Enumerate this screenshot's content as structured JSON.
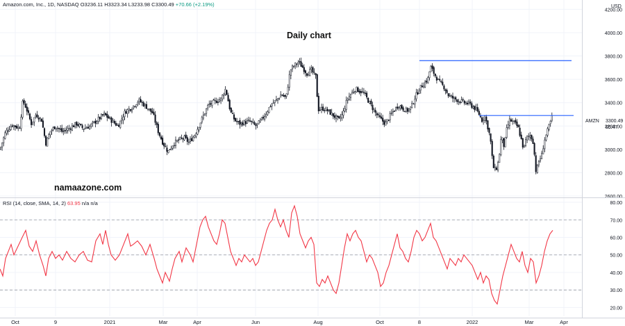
{
  "header": {
    "symbol": "Amazon.com, Inc., 1D, NASDAQ",
    "ohlc": "O3236.11  H3323.34  L3233.98  C3300.49",
    "change": "+70.66 (+2.19%)"
  },
  "title": "Daily chart",
  "watermark": "namaazone.com",
  "price_axis": {
    "unit": "USD",
    "ticker": "AMZN",
    "last_price": "3300.49",
    "countdown": "05:47"
  },
  "rsi_header": {
    "label": "RSI (14, close, SMA, 14, 2)",
    "value": "63.95",
    "extra": "n/a  n/a"
  },
  "colors": {
    "up": "#089981",
    "rsi": "#f23645",
    "levels": "#2962ff",
    "candles": "#131722"
  },
  "chart_data": [
    {
      "type": "candlestick",
      "series_name": "Amazon.com, Inc.",
      "ylim": [
        2600,
        4250
      ],
      "y_ticks": [
        2600,
        2800,
        3000,
        3200,
        3400,
        3600,
        3800,
        4000,
        4200
      ],
      "x_ticks": [
        "Oct",
        "9",
        "2021",
        "Mar",
        "Apr",
        "Jun",
        "Aug",
        "Oct",
        "8",
        "2022",
        "Mar",
        "Apr"
      ],
      "close_path": [
        [
          0,
          3000
        ],
        [
          8,
          3150
        ],
        [
          18,
          3210
        ],
        [
          28,
          3180
        ],
        [
          33,
          3420
        ],
        [
          38,
          3350
        ],
        [
          45,
          3220
        ],
        [
          52,
          3300
        ],
        [
          60,
          3250
        ],
        [
          66,
          3050
        ],
        [
          72,
          3150
        ],
        [
          80,
          3200
        ],
        [
          90,
          3150
        ],
        [
          100,
          3180
        ],
        [
          110,
          3220
        ],
        [
          120,
          3180
        ],
        [
          130,
          3200
        ],
        [
          140,
          3250
        ],
        [
          150,
          3300
        ],
        [
          160,
          3250
        ],
        [
          170,
          3200
        ],
        [
          180,
          3320
        ],
        [
          190,
          3360
        ],
        [
          200,
          3420
        ],
        [
          210,
          3370
        ],
        [
          220,
          3310
        ],
        [
          228,
          3150
        ],
        [
          235,
          3050
        ],
        [
          242,
          2980
        ],
        [
          250,
          3050
        ],
        [
          258,
          3080
        ],
        [
          265,
          3100
        ],
        [
          272,
          3060
        ],
        [
          280,
          3120
        ],
        [
          290,
          3250
        ],
        [
          300,
          3380
        ],
        [
          310,
          3410
        ],
        [
          318,
          3430
        ],
        [
          325,
          3520
        ],
        [
          332,
          3320
        ],
        [
          338,
          3250
        ],
        [
          345,
          3220
        ],
        [
          352,
          3230
        ],
        [
          360,
          3240
        ],
        [
          368,
          3200
        ],
        [
          375,
          3240
        ],
        [
          382,
          3300
        ],
        [
          390,
          3380
        ],
        [
          398,
          3420
        ],
        [
          405,
          3470
        ],
        [
          412,
          3440
        ],
        [
          418,
          3680
        ],
        [
          424,
          3720
        ],
        [
          430,
          3750
        ],
        [
          436,
          3700
        ],
        [
          442,
          3650
        ],
        [
          448,
          3680
        ],
        [
          455,
          3620
        ],
        [
          458,
          3340
        ],
        [
          465,
          3350
        ],
        [
          472,
          3330
        ],
        [
          480,
          3290
        ],
        [
          488,
          3250
        ],
        [
          494,
          3310
        ],
        [
          500,
          3430
        ],
        [
          506,
          3480
        ],
        [
          512,
          3520
        ],
        [
          518,
          3500
        ],
        [
          524,
          3480
        ],
        [
          530,
          3420
        ],
        [
          536,
          3360
        ],
        [
          542,
          3300
        ],
        [
          548,
          3260
        ],
        [
          555,
          3220
        ],
        [
          562,
          3290
        ],
        [
          568,
          3340
        ],
        [
          574,
          3380
        ],
        [
          580,
          3350
        ],
        [
          586,
          3330
        ],
        [
          592,
          3360
        ],
        [
          598,
          3450
        ],
        [
          604,
          3520
        ],
        [
          610,
          3560
        ],
        [
          616,
          3600
        ],
        [
          620,
          3710
        ],
        [
          626,
          3640
        ],
        [
          632,
          3580
        ],
        [
          640,
          3530
        ],
        [
          646,
          3460
        ],
        [
          652,
          3440
        ],
        [
          660,
          3420
        ],
        [
          668,
          3400
        ],
        [
          676,
          3390
        ],
        [
          684,
          3350
        ],
        [
          690,
          3300
        ],
        [
          694,
          3250
        ],
        [
          698,
          3290
        ],
        [
          702,
          3200
        ],
        [
          706,
          3100
        ],
        [
          710,
          2850
        ],
        [
          714,
          2820
        ],
        [
          718,
          2900
        ],
        [
          722,
          3120
        ],
        [
          726,
          3020
        ],
        [
          730,
          3180
        ],
        [
          734,
          3250
        ],
        [
          740,
          3230
        ],
        [
          746,
          3190
        ],
        [
          750,
          3100
        ],
        [
          754,
          3000
        ],
        [
          758,
          3100
        ],
        [
          764,
          3120
        ],
        [
          768,
          3060
        ],
        [
          772,
          2800
        ],
        [
          776,
          2900
        ],
        [
          780,
          2950
        ],
        [
          784,
          3080
        ],
        [
          788,
          3150
        ],
        [
          792,
          3220
        ],
        [
          796,
          3300
        ]
      ],
      "horizontal_lines": [
        {
          "price": 3760,
          "x_from": 604,
          "x_to": 823
        },
        {
          "price": 3290,
          "x_from": 690,
          "x_to": 826
        }
      ]
    },
    {
      "type": "line",
      "series_name": "RSI",
      "ylim": [
        15,
        82
      ],
      "y_ticks": [
        20,
        30,
        40,
        50,
        60,
        70,
        80
      ],
      "bands": [
        30,
        50,
        70
      ],
      "values_path": [
        [
          0,
          42
        ],
        [
          4,
          38
        ],
        [
          8,
          48
        ],
        [
          12,
          52
        ],
        [
          16,
          56
        ],
        [
          20,
          50
        ],
        [
          26,
          55
        ],
        [
          32,
          60
        ],
        [
          37,
          64
        ],
        [
          42,
          55
        ],
        [
          47,
          52
        ],
        [
          52,
          58
        ],
        [
          57,
          50
        ],
        [
          62,
          44
        ],
        [
          66,
          38
        ],
        [
          70,
          48
        ],
        [
          75,
          52
        ],
        [
          80,
          48
        ],
        [
          85,
          50
        ],
        [
          90,
          47
        ],
        [
          96,
          52
        ],
        [
          102,
          48
        ],
        [
          108,
          46
        ],
        [
          114,
          50
        ],
        [
          120,
          52
        ],
        [
          126,
          47
        ],
        [
          132,
          46
        ],
        [
          138,
          58
        ],
        [
          144,
          62
        ],
        [
          148,
          56
        ],
        [
          152,
          64
        ],
        [
          156,
          56
        ],
        [
          160,
          50
        ],
        [
          166,
          47
        ],
        [
          172,
          50
        ],
        [
          178,
          56
        ],
        [
          184,
          62
        ],
        [
          188,
          55
        ],
        [
          192,
          56
        ],
        [
          198,
          58
        ],
        [
          204,
          55
        ],
        [
          210,
          50
        ],
        [
          216,
          56
        ],
        [
          222,
          48
        ],
        [
          226,
          42
        ],
        [
          230,
          38
        ],
        [
          234,
          34
        ],
        [
          238,
          40
        ],
        [
          244,
          35
        ],
        [
          248,
          42
        ],
        [
          252,
          48
        ],
        [
          258,
          52
        ],
        [
          262,
          46
        ],
        [
          268,
          54
        ],
        [
          274,
          50
        ],
        [
          278,
          46
        ],
        [
          284,
          58
        ],
        [
          288,
          66
        ],
        [
          292,
          70
        ],
        [
          296,
          72
        ],
        [
          300,
          66
        ],
        [
          304,
          62
        ],
        [
          308,
          58
        ],
        [
          312,
          56
        ],
        [
          316,
          62
        ],
        [
          320,
          70
        ],
        [
          324,
          68
        ],
        [
          328,
          60
        ],
        [
          332,
          52
        ],
        [
          336,
          48
        ],
        [
          340,
          44
        ],
        [
          344,
          48
        ],
        [
          348,
          46
        ],
        [
          352,
          50
        ],
        [
          356,
          48
        ],
        [
          360,
          46
        ],
        [
          364,
          48
        ],
        [
          368,
          44
        ],
        [
          372,
          46
        ],
        [
          376,
          52
        ],
        [
          380,
          58
        ],
        [
          384,
          64
        ],
        [
          388,
          68
        ],
        [
          392,
          70
        ],
        [
          396,
          76
        ],
        [
          400,
          70
        ],
        [
          404,
          66
        ],
        [
          408,
          70
        ],
        [
          412,
          64
        ],
        [
          416,
          60
        ],
        [
          420,
          74
        ],
        [
          424,
          78
        ],
        [
          428,
          72
        ],
        [
          432,
          62
        ],
        [
          436,
          58
        ],
        [
          440,
          54
        ],
        [
          444,
          58
        ],
        [
          448,
          60
        ],
        [
          452,
          56
        ],
        [
          456,
          34
        ],
        [
          460,
          32
        ],
        [
          464,
          36
        ],
        [
          468,
          34
        ],
        [
          472,
          38
        ],
        [
          476,
          34
        ],
        [
          480,
          30
        ],
        [
          484,
          28
        ],
        [
          488,
          34
        ],
        [
          492,
          44
        ],
        [
          496,
          54
        ],
        [
          500,
          62
        ],
        [
          504,
          58
        ],
        [
          508,
          62
        ],
        [
          512,
          64
        ],
        [
          516,
          60
        ],
        [
          520,
          58
        ],
        [
          524,
          52
        ],
        [
          528,
          46
        ],
        [
          532,
          50
        ],
        [
          536,
          48
        ],
        [
          540,
          44
        ],
        [
          544,
          40
        ],
        [
          548,
          32
        ],
        [
          552,
          34
        ],
        [
          556,
          40
        ],
        [
          560,
          44
        ],
        [
          564,
          50
        ],
        [
          568,
          56
        ],
        [
          572,
          62
        ],
        [
          576,
          54
        ],
        [
          580,
          52
        ],
        [
          584,
          48
        ],
        [
          588,
          46
        ],
        [
          592,
          52
        ],
        [
          596,
          60
        ],
        [
          600,
          64
        ],
        [
          604,
          62
        ],
        [
          608,
          58
        ],
        [
          612,
          60
        ],
        [
          616,
          64
        ],
        [
          620,
          68
        ],
        [
          624,
          60
        ],
        [
          628,
          58
        ],
        [
          632,
          54
        ],
        [
          636,
          50
        ],
        [
          640,
          46
        ],
        [
          644,
          42
        ],
        [
          648,
          48
        ],
        [
          652,
          46
        ],
        [
          656,
          44
        ],
        [
          660,
          48
        ],
        [
          664,
          46
        ],
        [
          668,
          50
        ],
        [
          672,
          48
        ],
        [
          676,
          46
        ],
        [
          680,
          44
        ],
        [
          684,
          40
        ],
        [
          688,
          36
        ],
        [
          692,
          40
        ],
        [
          696,
          34
        ],
        [
          700,
          38
        ],
        [
          704,
          36
        ],
        [
          708,
          28
        ],
        [
          712,
          24
        ],
        [
          716,
          22
        ],
        [
          720,
          30
        ],
        [
          724,
          38
        ],
        [
          728,
          44
        ],
        [
          732,
          50
        ],
        [
          736,
          56
        ],
        [
          740,
          52
        ],
        [
          744,
          48
        ],
        [
          748,
          46
        ],
        [
          752,
          52
        ],
        [
          756,
          44
        ],
        [
          760,
          40
        ],
        [
          764,
          48
        ],
        [
          768,
          46
        ],
        [
          772,
          34
        ],
        [
          776,
          38
        ],
        [
          780,
          44
        ],
        [
          784,
          52
        ],
        [
          788,
          58
        ],
        [
          792,
          62
        ],
        [
          796,
          64
        ]
      ]
    }
  ]
}
